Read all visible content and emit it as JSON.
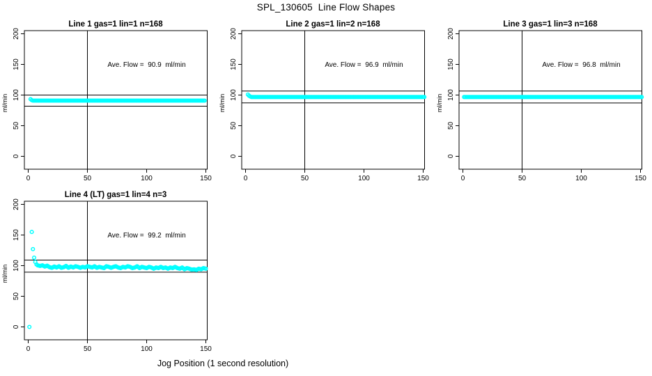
{
  "page": {
    "main_title": "SPL_130605  Line Flow Shapes",
    "x_axis_label": "Jog Position (1 second resolution)"
  },
  "colors": {
    "points": "#00ffff",
    "axis": "#000000",
    "background": "#ffffff"
  },
  "chart_data": [
    {
      "type": "scatter",
      "title": "Line 1 gas=1 lin=1 n=168",
      "annotation": "Ave. Flow =  90.9  ml/min",
      "ave_flow_ml_min": 90.9,
      "ylabel": "ml/min",
      "x_ticks": [
        0,
        50,
        100,
        150
      ],
      "y_ticks": [
        0,
        50,
        100,
        150,
        200
      ],
      "xlim": [
        -6,
        156
      ],
      "ylim": [
        -21,
        205
      ],
      "grid": false,
      "ref_lines_h": [
        81.8,
        100.0
      ],
      "ref_line_v": 50,
      "series": {
        "head_points": [
          [
            2,
            93.3
          ],
          [
            3,
            91.6
          ]
        ],
        "flat": {
          "from": 4,
          "to": 149,
          "value": 90.9
        },
        "outliers": [],
        "band_knots": []
      }
    },
    {
      "type": "scatter",
      "title": "Line 2 gas=1 lin=2 n=168",
      "annotation": "Ave. Flow =  96.9  ml/min",
      "ave_flow_ml_min": 96.9,
      "ylabel": "ml/min",
      "x_ticks": [
        0,
        50,
        100,
        150
      ],
      "y_ticks": [
        0,
        50,
        100,
        150,
        200
      ],
      "xlim": [
        -6,
        156
      ],
      "ylim": [
        -21,
        205
      ],
      "grid": false,
      "ref_lines_h": [
        87.2,
        106.6
      ],
      "ref_line_v": 50,
      "series": {
        "head_points": [
          [
            2,
            100.8
          ],
          [
            3,
            98.8
          ],
          [
            4,
            97.6
          ]
        ],
        "flat": {
          "from": 5,
          "to": 151,
          "value": 96.8
        },
        "outliers": [],
        "band_knots": []
      }
    },
    {
      "type": "scatter",
      "title": "Line 3 gas=1 lin=3 n=168",
      "annotation": "Ave. Flow =  96.8  ml/min",
      "ave_flow_ml_min": 96.8,
      "ylabel": "ml/min",
      "x_ticks": [
        0,
        50,
        100,
        150
      ],
      "y_ticks": [
        0,
        50,
        100,
        150,
        200
      ],
      "xlim": [
        -6,
        156
      ],
      "ylim": [
        -21,
        205
      ],
      "grid": false,
      "ref_lines_h": [
        87.1,
        106.5
      ],
      "ref_line_v": 50,
      "series": {
        "head_points": [],
        "flat": {
          "from": 1,
          "to": 151,
          "value": 96.8
        },
        "outliers": [],
        "band_knots": []
      }
    },
    {
      "type": "scatter",
      "title": "Line 4 (LT) gas=1 lin=4 n=3",
      "annotation": "Ave. Flow =  99.2  ml/min",
      "ave_flow_ml_min": 99.2,
      "ylabel": "ml/min",
      "x_ticks": [
        0,
        50,
        100,
        150
      ],
      "y_ticks": [
        0,
        50,
        100,
        150,
        200
      ],
      "xlim": [
        -6,
        156
      ],
      "ylim": [
        -21,
        205
      ],
      "grid": false,
      "ref_lines_h": [
        89.3,
        109.1
      ],
      "ref_line_v": 50,
      "series": {
        "head_points": [],
        "flat": null,
        "outliers": [
          [
            1,
            0
          ],
          [
            3,
            155
          ],
          [
            4,
            127
          ],
          [
            5,
            113
          ],
          [
            6,
            106
          ]
        ],
        "band_knots": [
          [
            7,
            102
          ],
          [
            8,
            100.5
          ],
          [
            10,
            99.5
          ],
          [
            12,
            100.5
          ],
          [
            14,
            98.5
          ],
          [
            16,
            100
          ],
          [
            18,
            97.5
          ],
          [
            20,
            96.5
          ],
          [
            22,
            98.5
          ],
          [
            24,
            97
          ],
          [
            26,
            99
          ],
          [
            28,
            96.5
          ],
          [
            30,
            97.5
          ],
          [
            32,
            99.5
          ],
          [
            34,
            96.5
          ],
          [
            36,
            98.5
          ],
          [
            38,
            97
          ],
          [
            40,
            99
          ],
          [
            42,
            98
          ],
          [
            44,
            96.5
          ],
          [
            46,
            98
          ],
          [
            48,
            97
          ],
          [
            50,
            99
          ],
          [
            52,
            98
          ],
          [
            54,
            97
          ],
          [
            56,
            99
          ],
          [
            58,
            96.5
          ],
          [
            60,
            98
          ],
          [
            62,
            97
          ],
          [
            64,
            96
          ],
          [
            66,
            99
          ],
          [
            68,
            98
          ],
          [
            70,
            96.5
          ],
          [
            72,
            98
          ],
          [
            74,
            99
          ],
          [
            76,
            97
          ],
          [
            78,
            96
          ],
          [
            80,
            98
          ],
          [
            82,
            97
          ],
          [
            84,
            99
          ],
          [
            86,
            98
          ],
          [
            88,
            96
          ],
          [
            90,
            97
          ],
          [
            92,
            99
          ],
          [
            94,
            96
          ],
          [
            96,
            98
          ],
          [
            98,
            97
          ],
          [
            100,
            96
          ],
          [
            102,
            98
          ],
          [
            104,
            97
          ],
          [
            106,
            95
          ],
          [
            108,
            97
          ],
          [
            110,
            96
          ],
          [
            112,
            98
          ],
          [
            114,
            96
          ],
          [
            116,
            97
          ],
          [
            118,
            95
          ],
          [
            120,
            97
          ],
          [
            122,
            96
          ],
          [
            124,
            98
          ],
          [
            126,
            96
          ],
          [
            128,
            95
          ],
          [
            130,
            97
          ],
          [
            132,
            94
          ],
          [
            134,
            96
          ],
          [
            136,
            95
          ],
          [
            138,
            93.5
          ],
          [
            140,
            94
          ],
          [
            142,
            93
          ],
          [
            144,
            95
          ],
          [
            146,
            94
          ],
          [
            148,
            96
          ],
          [
            150,
            95
          ]
        ]
      }
    }
  ]
}
